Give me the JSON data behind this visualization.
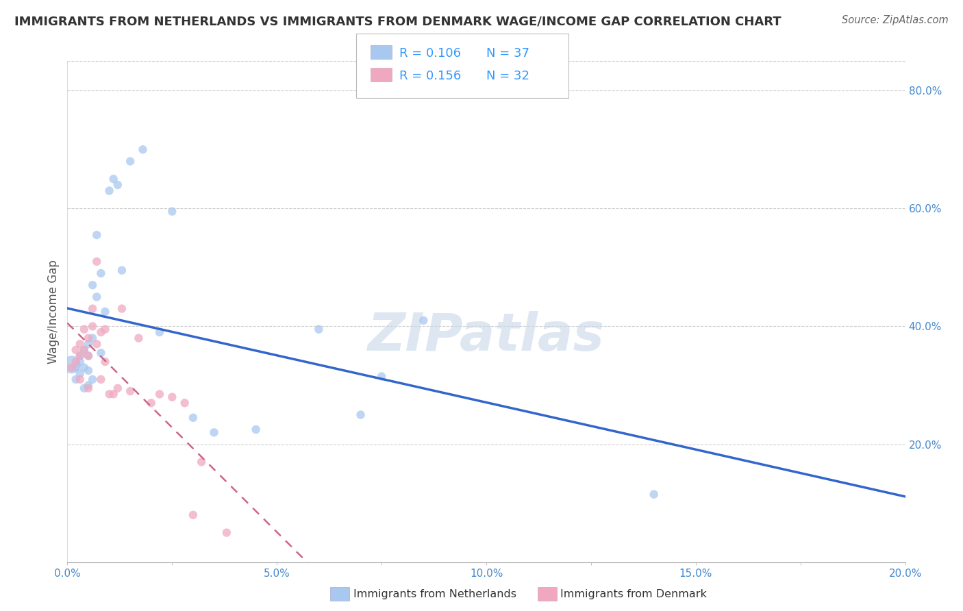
{
  "title": "IMMIGRANTS FROM NETHERLANDS VS IMMIGRANTS FROM DENMARK WAGE/INCOME GAP CORRELATION CHART",
  "source": "Source: ZipAtlas.com",
  "ylabel": "Wage/Income Gap",
  "xlim": [
    0.0,
    0.2
  ],
  "ylim": [
    0.0,
    0.85
  ],
  "xtick_labels": [
    "0.0%",
    "",
    "5.0%",
    "",
    "10.0%",
    "",
    "15.0%",
    "",
    "20.0%"
  ],
  "xtick_vals": [
    0.0,
    0.025,
    0.05,
    0.075,
    0.1,
    0.125,
    0.15,
    0.175,
    0.2
  ],
  "ytick_labels": [
    "20.0%",
    "40.0%",
    "60.0%",
    "80.0%"
  ],
  "ytick_vals": [
    0.2,
    0.4,
    0.6,
    0.8
  ],
  "netherlands_R": 0.106,
  "netherlands_N": 37,
  "denmark_R": 0.156,
  "denmark_N": 32,
  "netherlands_color": "#a8c8f0",
  "denmark_color": "#f0a8c0",
  "netherlands_line_color": "#3366cc",
  "denmark_line_color": "#cc6688",
  "watermark": "ZIPatlas",
  "watermark_color": "#c8d8e8",
  "legend_text_color": "#000000",
  "legend_value_color": "#3399ff",
  "nl_legend_label": "Immigrants from Netherlands",
  "dk_legend_label": "Immigrants from Denmark",
  "netherlands_x": [
    0.001,
    0.002,
    0.002,
    0.003,
    0.003,
    0.003,
    0.004,
    0.004,
    0.004,
    0.005,
    0.005,
    0.005,
    0.005,
    0.006,
    0.006,
    0.006,
    0.007,
    0.007,
    0.008,
    0.008,
    0.009,
    0.01,
    0.011,
    0.012,
    0.013,
    0.015,
    0.018,
    0.022,
    0.025,
    0.03,
    0.035,
    0.045,
    0.06,
    0.07,
    0.075,
    0.085,
    0.14
  ],
  "netherlands_y": [
    0.335,
    0.33,
    0.31,
    0.35,
    0.34,
    0.32,
    0.36,
    0.33,
    0.295,
    0.37,
    0.35,
    0.325,
    0.3,
    0.47,
    0.38,
    0.31,
    0.555,
    0.45,
    0.49,
    0.355,
    0.425,
    0.63,
    0.65,
    0.64,
    0.495,
    0.68,
    0.7,
    0.39,
    0.595,
    0.245,
    0.22,
    0.225,
    0.395,
    0.25,
    0.315,
    0.41,
    0.115
  ],
  "netherlands_sizes": [
    350,
    80,
    80,
    80,
    80,
    80,
    80,
    80,
    80,
    80,
    80,
    80,
    80,
    80,
    80,
    80,
    80,
    80,
    80,
    80,
    80,
    80,
    80,
    80,
    80,
    80,
    80,
    80,
    80,
    80,
    80,
    80,
    80,
    80,
    80,
    80,
    80
  ],
  "denmark_x": [
    0.001,
    0.002,
    0.002,
    0.003,
    0.003,
    0.003,
    0.004,
    0.004,
    0.005,
    0.005,
    0.005,
    0.006,
    0.006,
    0.007,
    0.007,
    0.008,
    0.008,
    0.009,
    0.009,
    0.01,
    0.011,
    0.012,
    0.013,
    0.015,
    0.017,
    0.02,
    0.022,
    0.025,
    0.028,
    0.03,
    0.032,
    0.038
  ],
  "denmark_y": [
    0.33,
    0.36,
    0.34,
    0.37,
    0.35,
    0.31,
    0.395,
    0.36,
    0.38,
    0.35,
    0.295,
    0.43,
    0.4,
    0.51,
    0.37,
    0.39,
    0.31,
    0.395,
    0.34,
    0.285,
    0.285,
    0.295,
    0.43,
    0.29,
    0.38,
    0.27,
    0.285,
    0.28,
    0.27,
    0.08,
    0.17,
    0.05
  ],
  "denmark_sizes": [
    80,
    80,
    80,
    80,
    80,
    80,
    80,
    80,
    80,
    80,
    80,
    80,
    80,
    80,
    80,
    80,
    80,
    80,
    80,
    80,
    80,
    80,
    80,
    80,
    80,
    80,
    80,
    80,
    80,
    80,
    80,
    80
  ],
  "background_color": "#ffffff",
  "grid_color": "#cccccc"
}
